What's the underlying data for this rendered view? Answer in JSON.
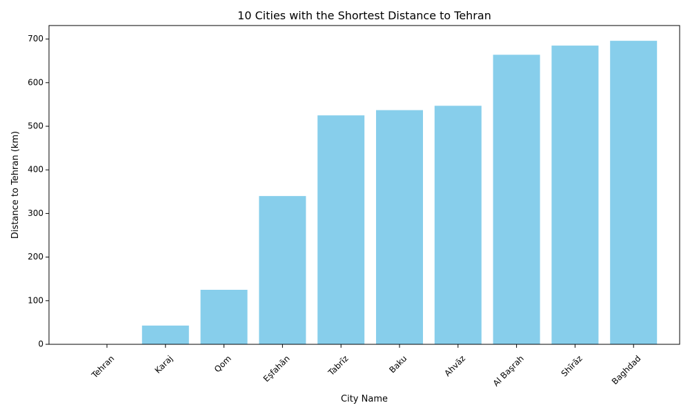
{
  "chart_data": {
    "type": "bar",
    "title": "10 Cities with the Shortest Distance to Tehran",
    "xlabel": "City Name",
    "ylabel": "Distance to Tehran (km)",
    "categories": [
      "Tehran",
      "Karaj",
      "Qom",
      "Eşfahān",
      "Tabrīz",
      "Baku",
      "Ahvāz",
      "Al Başrah",
      "Shīrāz",
      "Baghdad"
    ],
    "values": [
      0,
      43,
      125,
      340,
      525,
      537,
      547,
      664,
      685,
      696
    ],
    "ylim": [
      0,
      731
    ],
    "yticks": [
      0,
      100,
      200,
      300,
      400,
      500,
      600,
      700
    ],
    "grid": false,
    "bar_color": "#87CEEB",
    "xtick_rotation": 45
  }
}
